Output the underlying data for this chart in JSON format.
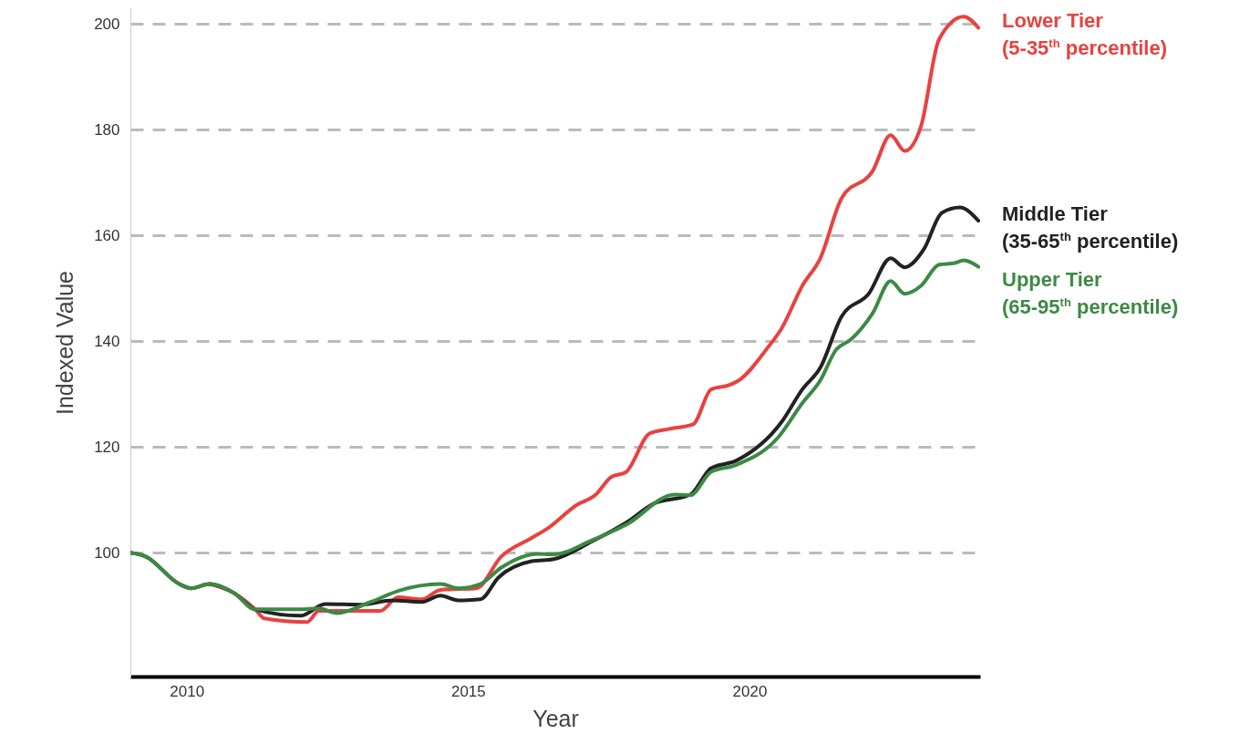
{
  "chart_data": {
    "type": "line",
    "xlabel": "Year",
    "ylabel": "Indexed Value",
    "xlim": [
      2009,
      2024.1
    ],
    "xticks": [
      2010,
      2015,
      2020
    ],
    "ylim": [
      76.6,
      203
    ],
    "yticks": [
      100,
      120,
      140,
      160,
      180,
      200
    ],
    "grid": "y",
    "line_style": "solid",
    "series": [
      {
        "name": "Lower Tier\n(5-35$^{th}$ percentile)",
        "color": "#e8423f",
        "x": [
          2010.41,
          2010.84,
          2011.22,
          2011.38,
          2012.14,
          2012.35,
          2013.44,
          2013.76,
          2014.18,
          2014.51,
          2015.15,
          2015.59,
          2016.13,
          2016.4,
          2016.94,
          2017.26,
          2017.54,
          2017.81,
          2018.23,
          2018.56,
          2019.0,
          2019.32,
          2019.64,
          2019.81,
          2020.34,
          2020.57,
          2020.94,
          2021.26,
          2021.64,
          2022.19,
          2022.51,
          2022.76,
          2023.05,
          2023.37,
          2023.81,
          2024.07
        ],
        "values": [
          94.1,
          92.4,
          89.3,
          87.6,
          86.9,
          89,
          89,
          91.6,
          91.2,
          93,
          93.3,
          99.3,
          102.8,
          104.5,
          109.1,
          110.9,
          114.3,
          115.3,
          122.6,
          123.4,
          124.3,
          130.9,
          131.7,
          132.6,
          139,
          142.4,
          150.5,
          155.7,
          167.1,
          172.2,
          179,
          176,
          180.7,
          197.1,
          201.4,
          199.3
        ]
      },
      {
        "name": "Middle Tier\n(35-65$^{th}$ percentile)",
        "color": "#222222",
        "x": [
          2009.0,
          2009.27,
          2009.87,
          2010.08,
          2010.41,
          2010.84,
          2011.22,
          2012.03,
          2012.46,
          2013.11,
          2013.65,
          2014.18,
          2014.51,
          2014.83,
          2015.22,
          2015.54,
          2016.13,
          2016.52,
          2017.21,
          2017.81,
          2018.3,
          2018.95,
          2019.32,
          2019.76,
          2020.57,
          2020.94,
          2021.26,
          2021.64,
          2022.12,
          2022.51,
          2022.76,
          2023.1,
          2023.42,
          2023.74,
          2024.07
        ],
        "values": [
          100,
          99.3,
          94.1,
          93.3,
          94.1,
          92.4,
          89.3,
          88.1,
          90.3,
          90.2,
          91,
          90.7,
          91.9,
          91,
          91.2,
          95.3,
          98.4,
          98.8,
          102.2,
          105.7,
          109.3,
          111,
          116,
          117.4,
          124.7,
          130.9,
          135,
          144.7,
          149,
          155.7,
          154,
          157.4,
          164.3,
          165.3,
          162.8
        ]
      },
      {
        "name": "Upper Tier\n(65-95$^{th}$ percentile)",
        "color": "#3c8a45",
        "x": [
          2009.0,
          2009.27,
          2009.87,
          2010.08,
          2010.41,
          2010.84,
          2011.22,
          2012.03,
          2012.35,
          2012.67,
          2013.27,
          2013.76,
          2014.51,
          2014.83,
          2015.22,
          2015.59,
          2016.24,
          2016.52,
          2017.21,
          2017.81,
          2018.67,
          2018.95,
          2019.32,
          2019.76,
          2020.5,
          2020.94,
          2021.26,
          2021.54,
          2021.8,
          2022.19,
          2022.51,
          2022.76,
          2023.05,
          2023.37,
          2023.65,
          2023.81,
          2024.07
        ],
        "values": [
          100,
          99.3,
          94.1,
          93.3,
          94.1,
          92.4,
          89.3,
          89.3,
          89.5,
          88.6,
          90.7,
          92.8,
          94.1,
          93.3,
          94.1,
          97.2,
          99.8,
          99.7,
          102.4,
          105.3,
          111,
          110.9,
          115.3,
          116.6,
          121.7,
          128.3,
          132.6,
          138.4,
          140.3,
          145.3,
          151.4,
          149,
          150.5,
          154.5,
          154.8,
          155.3,
          154.1
        ]
      }
    ]
  }
}
